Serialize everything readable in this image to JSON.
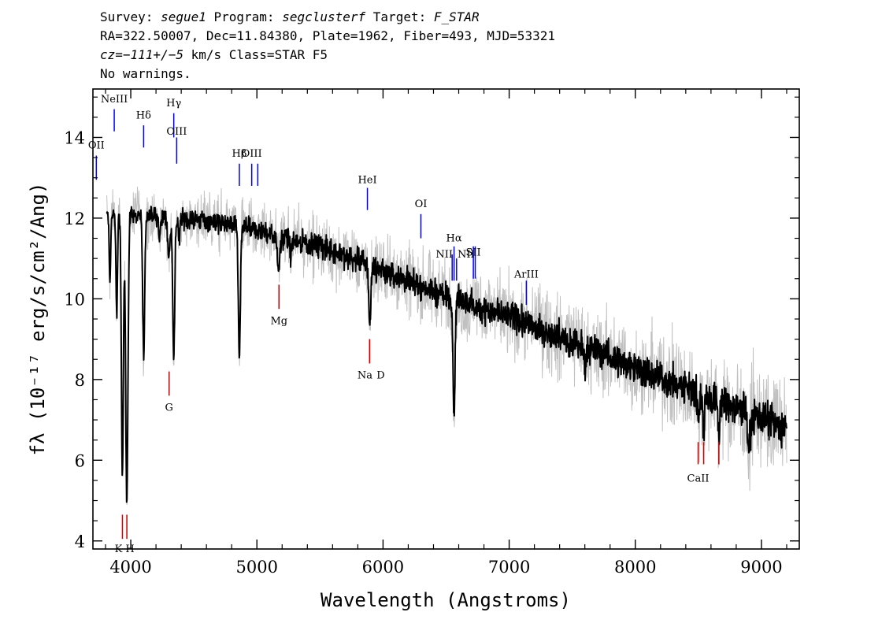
{
  "header": {
    "line1": {
      "survey_label": "Survey: ",
      "survey": "segue1",
      "program_label": " Program: ",
      "program": "segclusterf",
      "target_label": " Target: ",
      "target": "F_STAR"
    },
    "line2": "RA=322.50007, Dec=11.84380, Plate=1962, Fiber=493, MJD=53321",
    "line3": {
      "cz": "cz=−111+/−5",
      "rest": " km/s Class=STAR F5"
    },
    "line4": "No warnings."
  },
  "chart_data": {
    "type": "line",
    "xlabel": "Wavelength (Angstroms)",
    "ylabel": "fλ (10⁻¹⁷ erg/s/cm²/Ang)",
    "xlim": [
      3700,
      9300
    ],
    "ylim": [
      3.8,
      15.2
    ],
    "xticks": [
      {
        "value": 4000,
        "label": "4000"
      },
      {
        "value": 5000,
        "label": "5000"
      },
      {
        "value": 6000,
        "label": "6000"
      },
      {
        "value": 7000,
        "label": "7000"
      },
      {
        "value": 8000,
        "label": "8000"
      },
      {
        "value": 9000,
        "label": "9000"
      }
    ],
    "yticks": [
      {
        "value": 4,
        "label": "4"
      },
      {
        "value": 6,
        "label": "6"
      },
      {
        "value": 8,
        "label": "8"
      },
      {
        "value": 10,
        "label": "10"
      },
      {
        "value": 12,
        "label": "12"
      },
      {
        "value": 14,
        "label": "14"
      }
    ],
    "colors": {
      "flux": "#000000",
      "error": "#c0c0c0",
      "emission": "#0000ff",
      "absorption": "#cc0000"
    },
    "continuum": [
      [
        3800,
        12.1
      ],
      [
        4000,
        12.1
      ],
      [
        4300,
        12.0
      ],
      [
        4600,
        11.95
      ],
      [
        5000,
        11.7
      ],
      [
        5500,
        11.3
      ],
      [
        6000,
        10.7
      ],
      [
        6500,
        10.05
      ],
      [
        7000,
        9.55
      ],
      [
        7500,
        8.95
      ],
      [
        8000,
        8.3
      ],
      [
        8500,
        7.65
      ],
      [
        9000,
        7.05
      ],
      [
        9200,
        6.75
      ]
    ],
    "absorption_features": [
      {
        "center": 3835,
        "depth": 1.6,
        "width": 6
      },
      {
        "center": 3889,
        "depth": 2.5,
        "width": 6
      },
      {
        "center": 3934,
        "depth": 6.5,
        "width": 8
      },
      {
        "center": 3969,
        "depth": 7.0,
        "width": 9
      },
      {
        "center": 4102,
        "depth": 3.5,
        "width": 8
      },
      {
        "center": 4227,
        "depth": 0.6,
        "width": 6
      },
      {
        "center": 4303,
        "depth": 0.9,
        "width": 10
      },
      {
        "center": 4341,
        "depth": 3.4,
        "width": 8
      },
      {
        "center": 4384,
        "depth": 0.6,
        "width": 6
      },
      {
        "center": 4861,
        "depth": 3.3,
        "width": 8
      },
      {
        "center": 5172,
        "depth": 0.8,
        "width": 10
      },
      {
        "center": 5270,
        "depth": 0.4,
        "width": 8
      },
      {
        "center": 5895,
        "depth": 1.5,
        "width": 8
      },
      {
        "center": 6563,
        "depth": 2.8,
        "width": 8
      },
      {
        "center": 7600,
        "depth": 0.4,
        "width": 10
      },
      {
        "center": 8500,
        "depth": 0.8,
        "width": 6
      },
      {
        "center": 8542,
        "depth": 1.0,
        "width": 6
      },
      {
        "center": 8662,
        "depth": 1.0,
        "width": 6
      },
      {
        "center": 8900,
        "depth": 1.0,
        "width": 10
      }
    ],
    "emission_lines": [
      {
        "label": "OII",
        "x": 3727,
        "y_top": 13.55,
        "y_bottom": 12.95,
        "label_y": 13.8
      },
      {
        "label": "NeIII",
        "x": 3869,
        "y_top": 14.7,
        "y_bottom": 14.15,
        "label_y": 14.95
      },
      {
        "label": "Hδ",
        "x": 4102,
        "y_top": 14.3,
        "y_bottom": 13.75,
        "label_y": 14.55
      },
      {
        "label": "Hγ",
        "x": 4341,
        "y_top": 14.6,
        "y_bottom": 14.0,
        "label_y": 14.85
      },
      {
        "label": "OIII",
        "x": 4364,
        "y_top": 14.0,
        "y_bottom": 13.35,
        "label_y": 14.15
      },
      {
        "label": "Hβ",
        "x": 4861,
        "y_top": 13.35,
        "y_bottom": 12.8,
        "label_y": 13.6
      },
      {
        "label": "OIII",
        "x": 4959,
        "y_top": 13.35,
        "y_bottom": 12.8,
        "label_y": 13.6
      },
      {
        "label": "",
        "x": 5007,
        "y_top": 13.35,
        "y_bottom": 12.8,
        "label_y": 13.6
      },
      {
        "label": "HeI",
        "x": 5876,
        "y_top": 12.75,
        "y_bottom": 12.2,
        "label_y": 12.95
      },
      {
        "label": "OI",
        "x": 6300,
        "y_top": 12.1,
        "y_bottom": 11.5,
        "label_y": 12.35
      },
      {
        "label": "NII",
        "x": 6548,
        "y_top": 11.1,
        "y_bottom": 10.45,
        "label_y": 11.1
      },
      {
        "label": "Hα",
        "x": 6563,
        "y_top": 11.3,
        "y_bottom": 10.45,
        "label_y": 11.5
      },
      {
        "label": "NII",
        "x": 6583,
        "y_top": 11.0,
        "y_bottom": 10.45,
        "label_y": 11.1
      },
      {
        "label": "SII",
        "x": 6716,
        "y_top": 11.3,
        "y_bottom": 10.5,
        "label_y": 11.15
      },
      {
        "label": "",
        "x": 6731,
        "y_top": 11.3,
        "y_bottom": 10.5,
        "label_y": 11.15
      },
      {
        "label": "ArIII",
        "x": 7136,
        "y_top": 10.45,
        "y_bottom": 9.85,
        "label_y": 10.6
      }
    ],
    "absorption_lines": [
      {
        "label": "K",
        "x": 3934,
        "y_top": 4.65,
        "y_bottom": 4.05,
        "label_y": 3.8
      },
      {
        "label": "H",
        "x": 3969,
        "y_top": 4.65,
        "y_bottom": 4.05,
        "label_y": 3.8
      },
      {
        "label": "G",
        "x": 4304,
        "y_top": 8.2,
        "y_bottom": 7.6,
        "label_y": 7.3
      },
      {
        "label": "Mg",
        "x": 5175,
        "y_top": 10.35,
        "y_bottom": 9.75,
        "label_y": 9.45
      },
      {
        "label": "Na",
        "x": 5894,
        "y_top": 9.0,
        "y_bottom": 8.4,
        "label_y": 8.1
      },
      {
        "label": "D",
        "x": 5894,
        "y_top": 9.0,
        "y_bottom": 8.4,
        "label_y": 8.1
      },
      {
        "label": "CaII",
        "x": 8498,
        "y_top": 6.45,
        "y_bottom": 5.9,
        "label_y": 5.55
      },
      {
        "label": "",
        "x": 8542,
        "y_top": 6.45,
        "y_bottom": 5.9,
        "label_y": 5.55
      },
      {
        "label": "",
        "x": 8662,
        "y_top": 6.45,
        "y_bottom": 5.9,
        "label_y": 5.55
      }
    ]
  }
}
